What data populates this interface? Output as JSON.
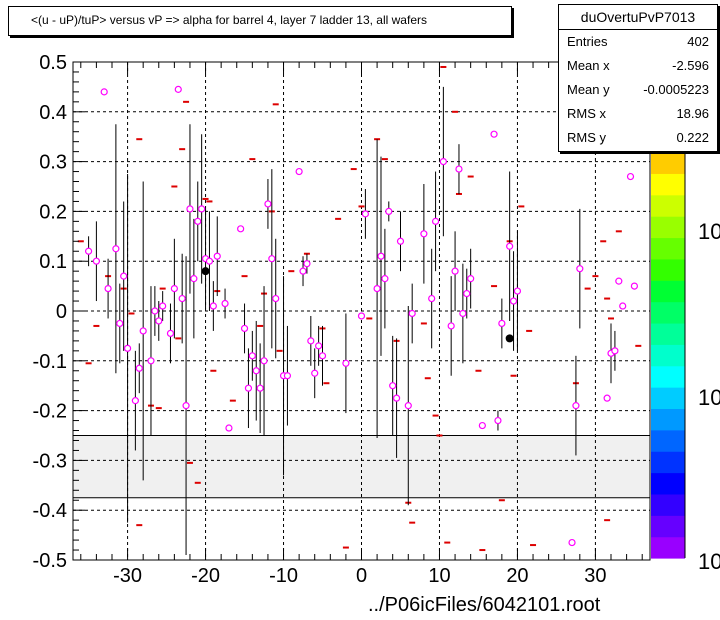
{
  "title": "<(u - uP)/tuP> versus   vP => alpha for barrel 4, layer 7 ladder 13, all wafers",
  "stats": {
    "name": "duOvertuPvP7013",
    "rows": [
      {
        "label": "Entries",
        "value": "402"
      },
      {
        "label": "Mean x",
        "value": "-2.596"
      },
      {
        "label": "Mean y",
        "value": "-0.0005223"
      },
      {
        "label": "RMS x",
        "value": "18.96"
      },
      {
        "label": "RMS y",
        "value": "0.222"
      }
    ]
  },
  "footer": "../P06icFiles/6042101.root",
  "colors": {
    "marker": "#ff00ff",
    "zero_marker": "#dd0000",
    "band": "#f0f0f0"
  },
  "chart_data": {
    "type": "scatter",
    "title": "<(u - uP)/tuP> versus   vP => alpha for barrel 4, layer 7 ladder 13, all wafers",
    "xlim": [
      -37,
      37
    ],
    "ylim": [
      -0.5,
      0.5
    ],
    "xticks": [
      -30,
      -20,
      -10,
      0,
      10,
      20,
      30
    ],
    "yticks": [
      0.5,
      0.4,
      0.3,
      0.2,
      0.1,
      0,
      -0.1,
      -0.2,
      -0.3,
      -0.4,
      -0.5
    ],
    "grid": true,
    "excluded_band_y": [
      -0.375,
      -0.25
    ],
    "colorbar_labels": [
      "10",
      "10",
      "10"
    ],
    "profile_points": [
      {
        "x": -35.0,
        "y": 0.12,
        "err": 0.03
      },
      {
        "x": -34.0,
        "y": 0.1,
        "err": 0.08
      },
      {
        "x": -33.0,
        "y": 0.44,
        "err": 0.0
      },
      {
        "x": -32.5,
        "y": 0.045,
        "err": 0.06
      },
      {
        "x": -31.5,
        "y": 0.125,
        "err": 0.25
      },
      {
        "x": -31.0,
        "y": -0.025,
        "err": 0.08
      },
      {
        "x": -30.5,
        "y": 0.07,
        "err": 0.15
      },
      {
        "x": -30.0,
        "y": -0.075,
        "err": 0.35
      },
      {
        "x": -29.0,
        "y": -0.18,
        "err": 0.1
      },
      {
        "x": -28.5,
        "y": -0.115,
        "err": 0.05
      },
      {
        "x": -28.0,
        "y": -0.04,
        "err": 0.3
      },
      {
        "x": -27.0,
        "y": -0.1,
        "err": 0.15
      },
      {
        "x": -26.5,
        "y": 0.0,
        "err": 0.05
      },
      {
        "x": -26.0,
        "y": -0.02,
        "err": 0.04
      },
      {
        "x": -25.5,
        "y": 0.01,
        "err": 0.03
      },
      {
        "x": -24.5,
        "y": -0.045,
        "err": 0.06
      },
      {
        "x": -24.0,
        "y": 0.045,
        "err": 0.1
      },
      {
        "x": -23.5,
        "y": 0.445,
        "err": 0.0
      },
      {
        "x": -23.0,
        "y": 0.025,
        "err": 0.09
      },
      {
        "x": -22.5,
        "y": -0.19,
        "err": 0.3
      },
      {
        "x": -22.0,
        "y": 0.205,
        "err": 0.17
      },
      {
        "x": -21.5,
        "y": 0.065,
        "err": 0.12
      },
      {
        "x": -21.0,
        "y": 0.18,
        "err": 0.08
      },
      {
        "x": -20.5,
        "y": 0.205,
        "err": 0.15
      },
      {
        "x": -20.0,
        "y": 0.105,
        "err": 0.1
      },
      {
        "x": -19.5,
        "y": 0.1,
        "err": 0.1
      },
      {
        "x": -19.0,
        "y": 0.01,
        "err": 0.05
      },
      {
        "x": -18.5,
        "y": 0.11,
        "err": 0.08
      },
      {
        "x": -17.5,
        "y": 0.015,
        "err": 0.03
      },
      {
        "x": -17.0,
        "y": -0.235,
        "err": 0.0
      },
      {
        "x": -15.5,
        "y": 0.165,
        "err": 0.0
      },
      {
        "x": -15.0,
        "y": -0.035,
        "err": 0.05
      },
      {
        "x": -14.5,
        "y": -0.155,
        "err": 0.08
      },
      {
        "x": -14.0,
        "y": -0.09,
        "err": 0.05
      },
      {
        "x": -13.5,
        "y": -0.12,
        "err": 0.1
      },
      {
        "x": -13.0,
        "y": -0.155,
        "err": 0.09
      },
      {
        "x": -12.5,
        "y": -0.1,
        "err": 0.15
      },
      {
        "x": -12.0,
        "y": 0.215,
        "err": 0.05
      },
      {
        "x": -11.5,
        "y": 0.105,
        "err": 0.18
      },
      {
        "x": -11.0,
        "y": 0.025,
        "err": 0.12
      },
      {
        "x": -10.0,
        "y": -0.13,
        "err": 0.2
      },
      {
        "x": -9.5,
        "y": -0.13,
        "err": 0.1
      },
      {
        "x": -8.0,
        "y": 0.28,
        "err": 0.0
      },
      {
        "x": -7.5,
        "y": 0.08,
        "err": 0.03
      },
      {
        "x": -7.0,
        "y": 0.095,
        "err": 0.02
      },
      {
        "x": -6.5,
        "y": -0.06,
        "err": 0.05
      },
      {
        "x": -6.0,
        "y": -0.125,
        "err": 0.05
      },
      {
        "x": -5.5,
        "y": -0.07,
        "err": 0.04
      },
      {
        "x": -5.0,
        "y": -0.09,
        "err": 0.06
      },
      {
        "x": -2.0,
        "y": -0.105,
        "err": 0.1
      },
      {
        "x": 0.0,
        "y": -0.01,
        "err": 0.0
      },
      {
        "x": 0.5,
        "y": 0.195,
        "err": 0.05
      },
      {
        "x": 2.0,
        "y": 0.045,
        "err": 0.3
      },
      {
        "x": 2.5,
        "y": 0.11,
        "err": 0.2
      },
      {
        "x": 3.0,
        "y": 0.065,
        "err": 0.1
      },
      {
        "x": 3.5,
        "y": 0.2,
        "err": 0.02
      },
      {
        "x": 4.0,
        "y": -0.15,
        "err": 0.1
      },
      {
        "x": 4.5,
        "y": -0.175,
        "err": 0.12
      },
      {
        "x": 5.0,
        "y": 0.14,
        "err": 0.06
      },
      {
        "x": 6.0,
        "y": -0.19,
        "err": 0.2
      },
      {
        "x": 6.5,
        "y": -0.005,
        "err": 0.06
      },
      {
        "x": 8.0,
        "y": 0.155,
        "err": 0.1
      },
      {
        "x": 9.0,
        "y": 0.025,
        "err": 0.1
      },
      {
        "x": 9.5,
        "y": 0.18,
        "err": 0.1
      },
      {
        "x": 10.5,
        "y": 0.3,
        "err": 0.15
      },
      {
        "x": 11.5,
        "y": -0.03,
        "err": 0.1
      },
      {
        "x": 12.0,
        "y": 0.08,
        "err": 0.08
      },
      {
        "x": 12.5,
        "y": 0.285,
        "err": 0.05
      },
      {
        "x": 13.0,
        "y": -0.005,
        "err": 0.1
      },
      {
        "x": 13.5,
        "y": 0.035,
        "err": 0.05
      },
      {
        "x": 14.0,
        "y": 0.065,
        "err": 0.06
      },
      {
        "x": 15.5,
        "y": -0.23,
        "err": 0.0
      },
      {
        "x": 17.0,
        "y": 0.355,
        "err": 0.0
      },
      {
        "x": 17.5,
        "y": -0.22,
        "err": 0.02
      },
      {
        "x": 18.0,
        "y": -0.025,
        "err": 0.05
      },
      {
        "x": 19.0,
        "y": 0.13,
        "err": 0.15
      },
      {
        "x": 19.5,
        "y": 0.02,
        "err": 0.1
      },
      {
        "x": 20.0,
        "y": 0.04,
        "err": 0.12
      },
      {
        "x": 27.0,
        "y": -0.465,
        "err": 0.0
      },
      {
        "x": 27.5,
        "y": -0.19,
        "err": 0.1
      },
      {
        "x": 28.0,
        "y": 0.085,
        "err": 0.12
      },
      {
        "x": 31.5,
        "y": -0.175,
        "err": 0.0
      },
      {
        "x": 32.0,
        "y": -0.085,
        "err": 0.06
      },
      {
        "x": 32.5,
        "y": -0.08,
        "err": 0.04
      },
      {
        "x": 33.0,
        "y": 0.06,
        "err": 0.0
      },
      {
        "x": 33.5,
        "y": 0.01,
        "err": 0.0
      },
      {
        "x": 34.5,
        "y": 0.27,
        "err": 0.0
      },
      {
        "x": 35.0,
        "y": 0.05,
        "err": 0.0
      }
    ],
    "zero_entry_points": [
      {
        "x": -36.0,
        "y": 0.14
      },
      {
        "x": -35.0,
        "y": -0.105
      },
      {
        "x": -34.0,
        "y": -0.03
      },
      {
        "x": -32.5,
        "y": 0.07
      },
      {
        "x": -30.5,
        "y": 0.045
      },
      {
        "x": -29.5,
        "y": -0.005
      },
      {
        "x": -28.5,
        "y": 0.345
      },
      {
        "x": -28.5,
        "y": -0.43
      },
      {
        "x": -27.0,
        "y": -0.19
      },
      {
        "x": -26.0,
        "y": -0.195
      },
      {
        "x": -25.5,
        "y": 0.045
      },
      {
        "x": -24.0,
        "y": 0.25
      },
      {
        "x": -23.5,
        "y": -0.055
      },
      {
        "x": -23.0,
        "y": 0.325
      },
      {
        "x": -22.5,
        "y": 0.42
      },
      {
        "x": -22.0,
        "y": -0.305
      },
      {
        "x": -21.0,
        "y": -0.345
      },
      {
        "x": -20.0,
        "y": 0.225
      },
      {
        "x": -19.5,
        "y": 0.22
      },
      {
        "x": -19.0,
        "y": -0.12
      },
      {
        "x": -18.5,
        "y": 0.04
      },
      {
        "x": -16.5,
        "y": -0.18
      },
      {
        "x": -15.0,
        "y": 0.07
      },
      {
        "x": -14.0,
        "y": 0.305
      },
      {
        "x": -13.0,
        "y": -0.03
      },
      {
        "x": -12.5,
        "y": 0.035
      },
      {
        "x": -11.5,
        "y": 0.2
      },
      {
        "x": -11.0,
        "y": 0.415
      },
      {
        "x": -10.5,
        "y": -0.08
      },
      {
        "x": -9.0,
        "y": 0.08
      },
      {
        "x": -7.0,
        "y": 0.115
      },
      {
        "x": -5.0,
        "y": -0.035
      },
      {
        "x": -4.5,
        "y": -0.145
      },
      {
        "x": -3.0,
        "y": 0.185
      },
      {
        "x": -2.0,
        "y": -0.475
      },
      {
        "x": -1.0,
        "y": 0.285
      },
      {
        "x": 0.0,
        "y": 0.21
      },
      {
        "x": 1.0,
        "y": -0.015
      },
      {
        "x": 2.0,
        "y": 0.345
      },
      {
        "x": 3.0,
        "y": 0.305
      },
      {
        "x": 4.5,
        "y": -0.06
      },
      {
        "x": 6.0,
        "y": -0.385
      },
      {
        "x": 6.5,
        "y": -0.425
      },
      {
        "x": 8.0,
        "y": -0.025
      },
      {
        "x": 8.5,
        "y": -0.135
      },
      {
        "x": 9.5,
        "y": -0.21
      },
      {
        "x": 10.0,
        "y": -0.25
      },
      {
        "x": 10.5,
        "y": 0.49
      },
      {
        "x": 11.0,
        "y": -0.465
      },
      {
        "x": 12.0,
        "y": 0.4
      },
      {
        "x": 12.5,
        "y": 0.235
      },
      {
        "x": 14.0,
        "y": 0.27
      },
      {
        "x": 15.0,
        "y": -0.12
      },
      {
        "x": 15.5,
        "y": -0.48
      },
      {
        "x": 17.0,
        "y": 0.05
      },
      {
        "x": 18.0,
        "y": -0.38
      },
      {
        "x": 19.0,
        "y": 0.14
      },
      {
        "x": 19.5,
        "y": -0.13
      },
      {
        "x": 20.5,
        "y": 0.21
      },
      {
        "x": 21.5,
        "y": -0.04
      },
      {
        "x": 22.0,
        "y": -0.47
      },
      {
        "x": 27.0,
        "y": 0.49
      },
      {
        "x": 27.5,
        "y": -0.145
      },
      {
        "x": 28.0,
        "y": 0.38
      },
      {
        "x": 29.0,
        "y": 0.045
      },
      {
        "x": 30.0,
        "y": 0.07
      },
      {
        "x": 31.0,
        "y": 0.14
      },
      {
        "x": 31.5,
        "y": 0.025
      },
      {
        "x": 31.5,
        "y": -0.42
      },
      {
        "x": 32.0,
        "y": -0.015
      },
      {
        "x": 33.0,
        "y": 0.16
      },
      {
        "x": 35.5,
        "y": -0.07
      }
    ],
    "mean_markers": [
      {
        "x": -20.0,
        "y": 0.08
      },
      {
        "x": 19.0,
        "y": -0.055
      }
    ]
  }
}
